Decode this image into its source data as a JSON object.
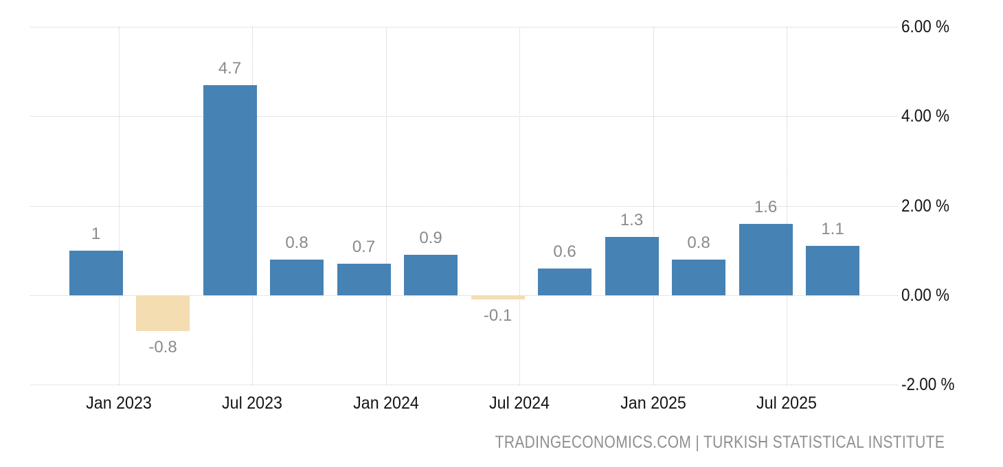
{
  "chart_data": {
    "type": "bar",
    "title": "",
    "unit": "%",
    "values": [
      1,
      -0.8,
      4.7,
      0.8,
      0.7,
      0.9,
      -0.1,
      0.6,
      1.3,
      0.8,
      1.6,
      1.1
    ],
    "bar_labels": [
      "1",
      "-0.8",
      "4.7",
      "0.8",
      "0.7",
      "0.9",
      "-0.1",
      "0.6",
      "1.3",
      "0.8",
      "1.6",
      "1.1"
    ],
    "x_tick_labels": [
      "Jan 2023",
      "Jul 2023",
      "Jan 2024",
      "Jul 2024",
      "Jan 2025",
      "Jul 2025"
    ],
    "y_tick_labels": [
      "6.00 %",
      "4.00 %",
      "2.00 %",
      "0.00 %",
      "-2.00 %"
    ],
    "y_ticks": [
      6,
      4,
      2,
      0,
      -2
    ],
    "ylim": [
      -2,
      6
    ],
    "grid": "dotted",
    "legend": "none",
    "positive_bar_color": "#4682b4",
    "negative_bar_color": "#f3ddb1",
    "value_label_color": "#8a8a8a",
    "axis_label_color": "#141414",
    "gridline_color": "#cccccc"
  },
  "footer": {
    "source_text": "TRADINGECONOMICS.COM | TURKISH STATISTICAL INSTITUTE"
  }
}
